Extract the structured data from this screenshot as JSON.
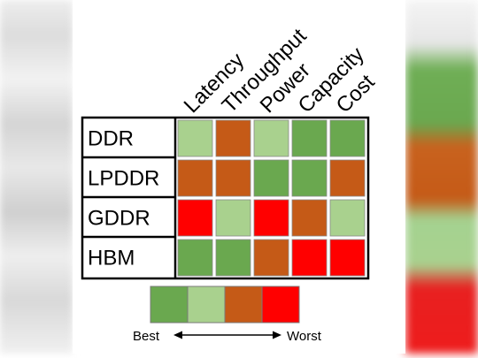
{
  "chart_data": {
    "type": "heatmap",
    "rows": [
      "DDR",
      "LPDDR",
      "GDDR",
      "HBM"
    ],
    "columns": [
      "Latency",
      "Throughput",
      "Power",
      "Capacity",
      "Cost"
    ],
    "scale": [
      {
        "level": 1,
        "color": "#6aa84f"
      },
      {
        "level": 2,
        "color": "#a9d18e"
      },
      {
        "level": 3,
        "color": "#c55a17"
      },
      {
        "level": 4,
        "color": "#ff0000"
      }
    ],
    "values": [
      [
        2,
        3,
        2,
        1,
        1
      ],
      [
        3,
        3,
        1,
        1,
        3
      ],
      [
        4,
        2,
        4,
        3,
        2
      ],
      [
        1,
        1,
        3,
        4,
        4
      ]
    ],
    "legend": {
      "best_label": "Best",
      "worst_label": "Worst",
      "position": "bottom"
    }
  }
}
